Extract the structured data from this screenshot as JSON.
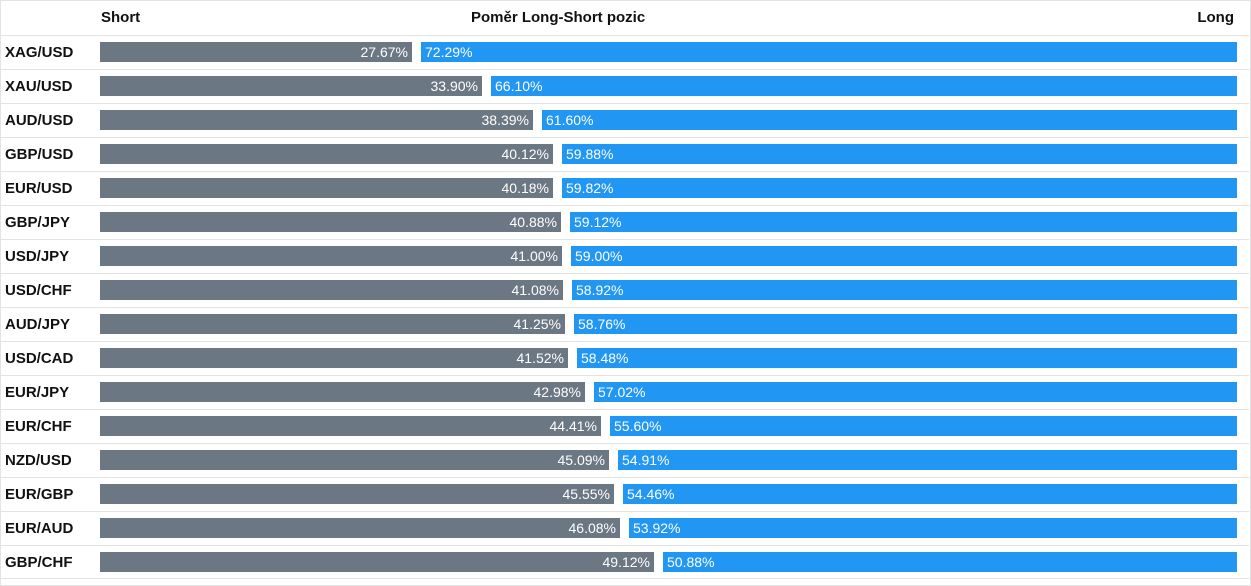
{
  "header": {
    "short_label": "Short",
    "title": "Poměr Long-Short pozic",
    "long_label": "Long"
  },
  "colors": {
    "short": "#6c7784",
    "long": "#2196f3"
  },
  "chart_data": {
    "type": "bar",
    "title": "Poměr Long-Short pozic",
    "stacked": true,
    "orientation": "horizontal",
    "categories": [
      "XAG/USD",
      "XAU/USD",
      "AUD/USD",
      "GBP/USD",
      "EUR/USD",
      "GBP/JPY",
      "USD/JPY",
      "USD/CHF",
      "AUD/JPY",
      "USD/CAD",
      "EUR/JPY",
      "EUR/CHF",
      "NZD/USD",
      "EUR/GBP",
      "EUR/AUD",
      "GBP/CHF"
    ],
    "series": [
      {
        "name": "Short",
        "values": [
          27.67,
          33.9,
          38.39,
          40.12,
          40.18,
          40.88,
          41.0,
          41.08,
          41.25,
          41.52,
          42.98,
          44.41,
          45.09,
          45.55,
          46.08,
          49.12
        ],
        "labels": [
          "27.67%",
          "33.90%",
          "38.39%",
          "40.12%",
          "40.18%",
          "40.88%",
          "41.00%",
          "41.08%",
          "41.25%",
          "41.52%",
          "42.98%",
          "44.41%",
          "45.09%",
          "45.55%",
          "46.08%",
          "49.12%"
        ]
      },
      {
        "name": "Long",
        "values": [
          72.29,
          66.1,
          61.6,
          59.88,
          59.82,
          59.12,
          59.0,
          58.92,
          58.76,
          58.48,
          57.02,
          55.6,
          54.91,
          54.46,
          53.92,
          50.88
        ],
        "labels": [
          "72.29%",
          "66.10%",
          "61.60%",
          "59.88%",
          "59.82%",
          "59.12%",
          "59.00%",
          "58.92%",
          "58.76%",
          "58.48%",
          "57.02%",
          "55.60%",
          "54.91%",
          "54.46%",
          "53.92%",
          "50.88%"
        ]
      }
    ],
    "xlim": [
      0,
      100
    ]
  }
}
